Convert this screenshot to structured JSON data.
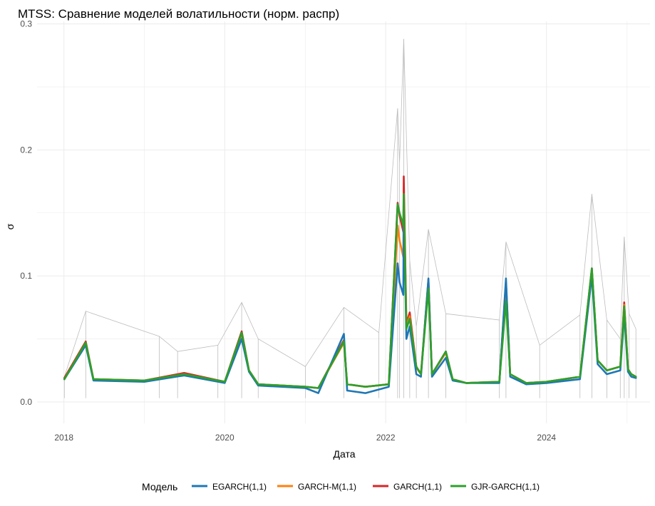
{
  "chart_data": {
    "type": "line",
    "title": "MTSS: Сравнение моделей волатильности (норм. распр)",
    "xlabel": "Дата",
    "ylabel": "σ",
    "xlim": [
      "2017-09-01",
      "2025-04-15"
    ],
    "ylim": [
      -0.017,
      0.302
    ],
    "x_ticks": [
      "2018-01-01",
      "2020-01-01",
      "2022-01-01",
      "2024-01-01"
    ],
    "x_tick_labels": [
      "2018",
      "2020",
      "2022",
      "2024"
    ],
    "y_ticks": [
      0.0,
      0.1,
      0.2,
      0.3
    ],
    "y_tick_labels": [
      "0.0",
      "0.1",
      "0.2",
      "0.3"
    ],
    "grid": true,
    "legend": {
      "title": "Модель",
      "position": "bottom",
      "entries": [
        "EGARCH(1,1)",
        "GARCH-M(1,1)",
        "GARCH(1,1)",
        "GJR-GARCH(1,1)"
      ]
    },
    "colors": {
      "EGARCH(1,1)": "#1f77b4",
      "GARCH-M(1,1)": "#ff7f0e",
      "GARCH(1,1)": "#d62728",
      "GJR-GARCH(1,1)": "#2ca02c",
      "abs_returns": "#bdbdbd",
      "grid": "#ebebeb"
    },
    "background_series": {
      "name": "|r|",
      "description": "absolute daily returns (grey thin lines)",
      "x": [
        "2018-01-03",
        "2018-04-10",
        "2019-03-10",
        "2019-06-01",
        "2019-12-01",
        "2020-03-18",
        "2020-06-01",
        "2021-01-01",
        "2021-06-25",
        "2021-12-01",
        "2022-02-24",
        "2022-03-05",
        "2022-03-24",
        "2022-04-20",
        "2022-05-20",
        "2022-07-14",
        "2022-10-01",
        "2023-06-01",
        "2023-07-01",
        "2023-12-01",
        "2024-06-01",
        "2024-07-25",
        "2024-10-01",
        "2024-12-01",
        "2024-12-19",
        "2025-01-10",
        "2025-02-10"
      ],
      "y": [
        0.02,
        0.072,
        0.052,
        0.04,
        0.045,
        0.079,
        0.05,
        0.028,
        0.075,
        0.055,
        0.233,
        0.19,
        0.288,
        0.112,
        0.06,
        0.137,
        0.07,
        0.065,
        0.127,
        0.045,
        0.069,
        0.165,
        0.065,
        0.05,
        0.131,
        0.07,
        0.058
      ]
    },
    "series": [
      {
        "name": "GARCH(1,1)",
        "x": [
          "2018-01-03",
          "2018-04-10",
          "2018-05-15",
          "2019-01-01",
          "2019-07-01",
          "2020-01-01",
          "2020-03-18",
          "2020-04-20",
          "2020-06-01",
          "2021-01-01",
          "2021-03-01",
          "2021-06-25",
          "2021-07-10",
          "2021-10-01",
          "2022-01-15",
          "2022-02-24",
          "2022-03-05",
          "2022-03-22",
          "2022-03-24",
          "2022-04-05",
          "2022-04-20",
          "2022-05-20",
          "2022-06-10",
          "2022-07-14",
          "2022-07-30",
          "2022-10-01",
          "2022-11-01",
          "2023-01-01",
          "2023-06-01",
          "2023-07-01",
          "2023-07-20",
          "2023-10-01",
          "2024-01-01",
          "2024-06-01",
          "2024-07-25",
          "2024-08-20",
          "2024-10-01",
          "2024-12-01",
          "2024-12-19",
          "2025-01-05",
          "2025-01-20",
          "2025-02-10"
        ],
        "y": [
          0.019,
          0.048,
          0.018,
          0.017,
          0.023,
          0.016,
          0.056,
          0.025,
          0.014,
          0.012,
          0.011,
          0.049,
          0.014,
          0.012,
          0.014,
          0.158,
          0.148,
          0.135,
          0.179,
          0.062,
          0.071,
          0.028,
          0.022,
          0.097,
          0.022,
          0.04,
          0.018,
          0.015,
          0.016,
          0.095,
          0.022,
          0.015,
          0.016,
          0.02,
          0.106,
          0.033,
          0.025,
          0.028,
          0.079,
          0.026,
          0.022,
          0.02
        ]
      },
      {
        "name": "GARCH-M(1,1)",
        "x": [
          "2018-01-03",
          "2018-04-10",
          "2018-05-15",
          "2019-01-01",
          "2019-07-01",
          "2020-01-01",
          "2020-03-18",
          "2020-04-20",
          "2020-06-01",
          "2021-01-01",
          "2021-03-01",
          "2021-06-25",
          "2021-07-10",
          "2021-10-01",
          "2022-01-15",
          "2022-02-24",
          "2022-03-05",
          "2022-03-22",
          "2022-03-24",
          "2022-04-05",
          "2022-04-20",
          "2022-05-20",
          "2022-06-10",
          "2022-07-14",
          "2022-07-30",
          "2022-10-01",
          "2022-11-01",
          "2023-01-01",
          "2023-06-01",
          "2023-07-01",
          "2023-07-20",
          "2023-10-01",
          "2024-01-01",
          "2024-06-01",
          "2024-07-25",
          "2024-08-20",
          "2024-10-01",
          "2024-12-01",
          "2024-12-19",
          "2025-01-05",
          "2025-01-20",
          "2025-02-10"
        ],
        "y": [
          0.018,
          0.047,
          0.018,
          0.017,
          0.022,
          0.016,
          0.054,
          0.025,
          0.014,
          0.012,
          0.011,
          0.047,
          0.014,
          0.012,
          0.014,
          0.14,
          0.128,
          0.115,
          0.165,
          0.06,
          0.068,
          0.027,
          0.022,
          0.094,
          0.022,
          0.039,
          0.018,
          0.015,
          0.016,
          0.092,
          0.022,
          0.015,
          0.016,
          0.02,
          0.103,
          0.033,
          0.025,
          0.028,
          0.077,
          0.026,
          0.022,
          0.02
        ]
      },
      {
        "name": "EGARCH(1,1)",
        "x": [
          "2018-01-03",
          "2018-04-10",
          "2018-05-15",
          "2019-01-01",
          "2019-07-01",
          "2020-01-01",
          "2020-03-18",
          "2020-04-20",
          "2020-06-01",
          "2021-01-01",
          "2021-03-01",
          "2021-06-25",
          "2021-07-10",
          "2021-10-01",
          "2022-01-15",
          "2022-02-24",
          "2022-03-05",
          "2022-03-22",
          "2022-03-24",
          "2022-04-05",
          "2022-04-20",
          "2022-05-20",
          "2022-06-10",
          "2022-07-14",
          "2022-07-30",
          "2022-10-01",
          "2022-11-01",
          "2023-01-01",
          "2023-06-01",
          "2023-07-01",
          "2023-07-20",
          "2023-10-01",
          "2024-01-01",
          "2024-06-01",
          "2024-07-25",
          "2024-08-20",
          "2024-10-01",
          "2024-12-01",
          "2024-12-19",
          "2025-01-05",
          "2025-01-20",
          "2025-02-10"
        ],
        "y": [
          0.018,
          0.045,
          0.017,
          0.016,
          0.021,
          0.015,
          0.05,
          0.024,
          0.013,
          0.011,
          0.007,
          0.054,
          0.009,
          0.007,
          0.012,
          0.11,
          0.095,
          0.085,
          0.16,
          0.05,
          0.06,
          0.022,
          0.02,
          0.098,
          0.02,
          0.035,
          0.017,
          0.015,
          0.015,
          0.098,
          0.02,
          0.014,
          0.015,
          0.018,
          0.1,
          0.03,
          0.022,
          0.025,
          0.07,
          0.024,
          0.02,
          0.019
        ]
      },
      {
        "name": "GJR-GARCH(1,1)",
        "x": [
          "2018-01-03",
          "2018-04-10",
          "2018-05-15",
          "2019-01-01",
          "2019-07-01",
          "2020-01-01",
          "2020-03-18",
          "2020-04-20",
          "2020-06-01",
          "2021-01-01",
          "2021-03-01",
          "2021-06-25",
          "2021-07-10",
          "2021-10-01",
          "2022-01-15",
          "2022-02-24",
          "2022-03-05",
          "2022-03-22",
          "2022-03-24",
          "2022-04-05",
          "2022-04-20",
          "2022-05-20",
          "2022-06-10",
          "2022-07-14",
          "2022-07-30",
          "2022-10-01",
          "2022-11-01",
          "2023-01-01",
          "2023-06-01",
          "2023-07-01",
          "2023-07-20",
          "2023-10-01",
          "2024-01-01",
          "2024-06-01",
          "2024-07-25",
          "2024-08-20",
          "2024-10-01",
          "2024-12-01",
          "2024-12-19",
          "2025-01-05",
          "2025-01-20",
          "2025-02-10"
        ],
        "y": [
          0.018,
          0.047,
          0.018,
          0.017,
          0.022,
          0.016,
          0.055,
          0.025,
          0.014,
          0.012,
          0.011,
          0.048,
          0.014,
          0.012,
          0.014,
          0.157,
          0.15,
          0.14,
          0.165,
          0.058,
          0.066,
          0.028,
          0.022,
          0.09,
          0.022,
          0.04,
          0.018,
          0.015,
          0.016,
          0.08,
          0.022,
          0.015,
          0.016,
          0.02,
          0.106,
          0.033,
          0.025,
          0.028,
          0.076,
          0.026,
          0.022,
          0.02
        ]
      }
    ]
  }
}
